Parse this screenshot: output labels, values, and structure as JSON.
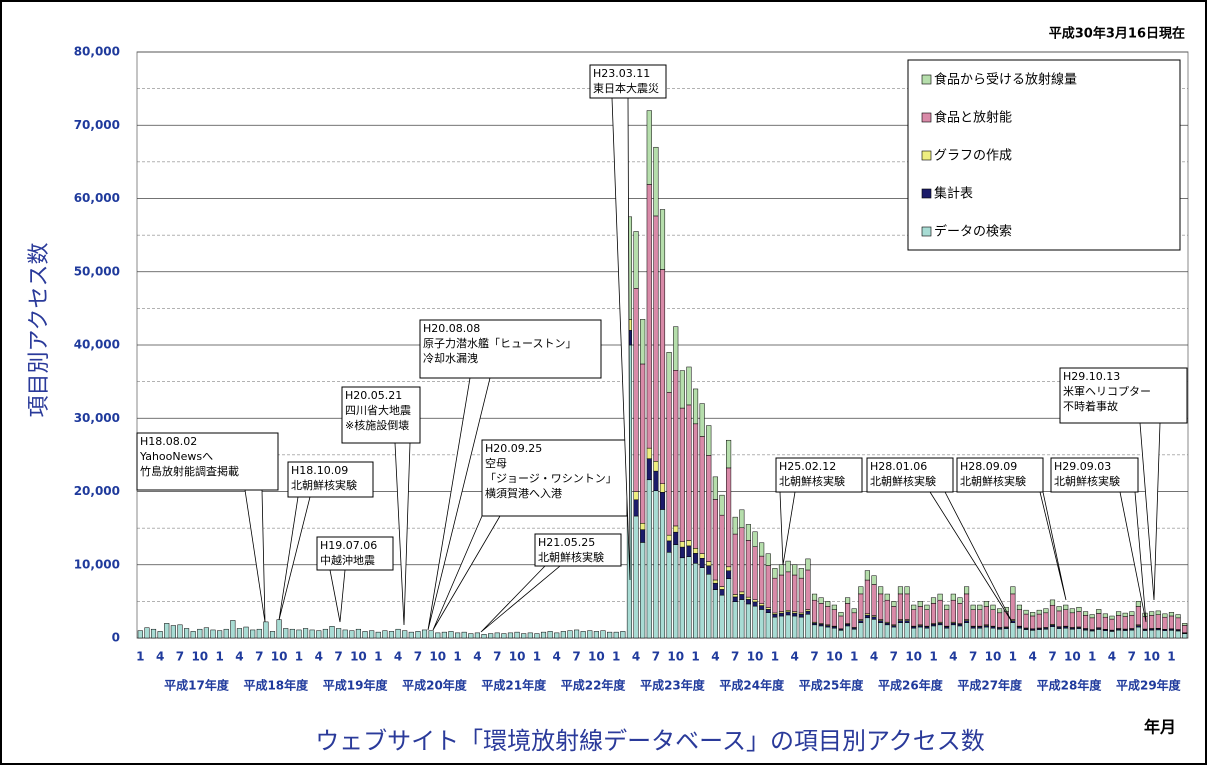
{
  "chart_data": {
    "type": "stacked_bar",
    "title": "ウェブサイト「環境放射線データベース」の項目別アクセス数",
    "subtitle": "平成30年3月16日現在",
    "y_label": "項目別アクセス数",
    "x_label": "年月",
    "ylim": [
      0,
      80000
    ],
    "yticks": [
      0,
      {
        "value": 10000,
        "label": "10,000"
      },
      {
        "value": 20000,
        "label": "20,000"
      },
      {
        "value": 30000,
        "label": "30,000"
      },
      {
        "value": 40000,
        "label": "40,000"
      },
      {
        "value": 50000,
        "label": "50,000"
      },
      {
        "value": 60000,
        "label": "60,000"
      },
      {
        "value": 70000,
        "label": "70,000"
      },
      {
        "value": 80000,
        "label": "80,000"
      }
    ],
    "minor_yticks": [
      5000,
      15000,
      25000,
      35000,
      45000,
      55000,
      65000,
      75000
    ],
    "grid": true,
    "legend": "upper right",
    "categories": [
      "1",
      null,
      null,
      "4",
      null,
      null,
      "7",
      null,
      null,
      "10",
      null,
      null,
      "1",
      null,
      null,
      "4",
      null,
      null,
      "7",
      null,
      null,
      "10",
      null,
      null,
      "1",
      null,
      null,
      "4",
      null,
      null,
      "7",
      null,
      null,
      "10",
      null,
      null,
      "1",
      null,
      null,
      "4",
      null,
      null,
      "7",
      null,
      null,
      "10",
      null,
      null,
      "1",
      null,
      null,
      "4",
      null,
      null,
      "7",
      null,
      null,
      "10",
      null,
      null,
      "1",
      null,
      null,
      "4",
      null,
      null,
      "7",
      null,
      null,
      "10",
      null,
      null,
      "1",
      null,
      null,
      "4",
      null,
      null,
      "7",
      null,
      null,
      "10",
      null,
      null,
      "1",
      null,
      null,
      "4",
      null,
      null,
      "7",
      null,
      null,
      "10",
      null,
      null,
      "1",
      null,
      null,
      "4",
      null,
      null,
      "7",
      null,
      null,
      "10",
      null,
      null,
      "1",
      null,
      null,
      "4",
      null,
      null,
      "7",
      null,
      null,
      "10",
      null,
      null,
      "1",
      null,
      null,
      "4",
      null,
      null,
      "7",
      null,
      null,
      "10",
      null,
      null,
      "1",
      null,
      null,
      "4",
      null,
      null,
      "7",
      null,
      null,
      "10",
      null,
      null,
      "1",
      null,
      null,
      "4",
      null,
      null,
      "7",
      null,
      null,
      "10",
      null,
      null,
      "1",
      null,
      null
    ],
    "fiscal_years": [
      "平成17年度",
      "平成18年度",
      "平成19年度",
      "平成20年度",
      "平成21年度",
      "平成22年度",
      "平成23年度",
      "平成24年度",
      "平成25年度",
      "平成26年度",
      "平成27年度",
      "平成28年度",
      "平成29年度"
    ],
    "series": [
      {
        "name": "データの検索",
        "color": "#a8dcd4",
        "values": [
          1000,
          1400,
          1200,
          900,
          2000,
          1700,
          1800,
          1300,
          900,
          1200,
          1400,
          1100,
          1000,
          1200,
          2400,
          1300,
          1500,
          1100,
          1200,
          2200,
          900,
          2500,
          1300,
          1200,
          1100,
          1300,
          1100,
          1000,
          1200,
          1600,
          1300,
          1100,
          1000,
          1200,
          900,
          1000,
          800,
          1000,
          900,
          1200,
          1000,
          800,
          900,
          1100,
          1000,
          700,
          800,
          900,
          700,
          800,
          600,
          700,
          500,
          600,
          700,
          600,
          700,
          800,
          600,
          700,
          600,
          800,
          900,
          700,
          900,
          1000,
          1100,
          900,
          1000,
          900,
          1000,
          800,
          800,
          900,
          40000,
          16650,
          13050,
          21600,
          20100,
          17550,
          11700,
          12750,
          10950,
          11100,
          10200,
          9600,
          8700,
          6600,
          5850,
          8100,
          4950,
          5250,
          4650,
          4350,
          3900,
          3450,
          2850,
          3000,
          3150,
          3000,
          2850,
          3240,
          1800,
          1650,
          1500,
          1350,
          1050,
          1650,
          1200,
          2100,
          2760,
          2550,
          2100,
          1800,
          1500,
          2100,
          2100,
          1350,
          1500,
          1350,
          1650,
          1800,
          1350,
          1800,
          1650,
          2100,
          1350,
          1350,
          1500,
          1350,
          1200,
          1260,
          2100,
          1350,
          1140,
          1050,
          1140,
          1200,
          1560,
          1290,
          1350,
          1200,
          1260,
          1080,
          960,
          1170,
          990,
          900,
          1080,
          1020,
          1080,
          1500,
          1020,
          1080,
          1110,
          990,
          1050,
          960,
          600
        ]
      },
      {
        "name": "集計表",
        "color": "#1c1c6a",
        "values": [
          0,
          0,
          0,
          0,
          0,
          0,
          0,
          0,
          0,
          0,
          0,
          0,
          0,
          0,
          0,
          0,
          0,
          0,
          0,
          0,
          0,
          0,
          0,
          0,
          0,
          0,
          0,
          0,
          0,
          0,
          0,
          0,
          0,
          0,
          0,
          0,
          0,
          0,
          0,
          0,
          0,
          0,
          0,
          0,
          0,
          0,
          0,
          0,
          0,
          0,
          0,
          0,
          0,
          0,
          0,
          0,
          0,
          0,
          0,
          0,
          0,
          0,
          0,
          0,
          0,
          0,
          0,
          0,
          0,
          0,
          0,
          0,
          0,
          0,
          2000,
          2220,
          1740,
          2880,
          2680,
          2340,
          1560,
          1700,
          1460,
          1480,
          1360,
          1280,
          1160,
          880,
          780,
          1080,
          660,
          700,
          620,
          580,
          520,
          460,
          380,
          400,
          420,
          400,
          380,
          432,
          240,
          220,
          200,
          180,
          140,
          220,
          160,
          280,
          368,
          340,
          280,
          240,
          200,
          280,
          280,
          180,
          200,
          180,
          220,
          240,
          180,
          240,
          220,
          280,
          180,
          180,
          200,
          180,
          160,
          168,
          280,
          180,
          152,
          140,
          152,
          160,
          208,
          172,
          180,
          160,
          168,
          144,
          128,
          156,
          132,
          120,
          144,
          136,
          144,
          200,
          136,
          144,
          148,
          132,
          140,
          128,
          80
        ]
      },
      {
        "name": "グラフの作成",
        "color": "#eeee80",
        "values": [
          0,
          0,
          0,
          0,
          0,
          0,
          0,
          0,
          0,
          0,
          0,
          0,
          0,
          0,
          0,
          0,
          0,
          0,
          0,
          0,
          0,
          0,
          0,
          0,
          0,
          0,
          0,
          0,
          0,
          0,
          0,
          0,
          0,
          0,
          0,
          0,
          0,
          0,
          0,
          0,
          0,
          0,
          0,
          0,
          0,
          0,
          0,
          0,
          0,
          0,
          0,
          0,
          0,
          0,
          0,
          0,
          0,
          0,
          0,
          0,
          0,
          0,
          0,
          0,
          0,
          0,
          0,
          0,
          0,
          0,
          0,
          0,
          0,
          0,
          1500,
          1110,
          870,
          1440,
          1340,
          1170,
          780,
          850,
          730,
          740,
          680,
          640,
          580,
          440,
          390,
          540,
          330,
          350,
          310,
          290,
          260,
          230,
          190,
          200,
          210,
          200,
          190,
          216,
          120,
          110,
          100,
          90,
          70,
          110,
          80,
          140,
          184,
          170,
          140,
          120,
          100,
          140,
          140,
          90,
          100,
          90,
          110,
          120,
          90,
          120,
          110,
          140,
          90,
          90,
          100,
          90,
          80,
          84,
          140,
          90,
          76,
          70,
          76,
          80,
          104,
          86,
          90,
          80,
          84,
          72,
          64,
          78,
          66,
          60,
          72,
          68,
          72,
          100,
          68,
          72,
          74,
          66,
          70,
          64,
          40
        ]
      },
      {
        "name": "食品と放射能",
        "color": "#d98aa8",
        "values": [
          0,
          0,
          0,
          0,
          0,
          0,
          0,
          0,
          0,
          0,
          0,
          0,
          0,
          0,
          0,
          0,
          0,
          0,
          0,
          0,
          0,
          0,
          0,
          0,
          0,
          0,
          0,
          0,
          0,
          0,
          0,
          0,
          0,
          0,
          0,
          0,
          0,
          0,
          0,
          0,
          0,
          0,
          0,
          0,
          0,
          0,
          0,
          0,
          0,
          0,
          0,
          0,
          0,
          0,
          0,
          0,
          0,
          0,
          0,
          0,
          0,
          0,
          0,
          0,
          0,
          0,
          0,
          0,
          0,
          0,
          0,
          0,
          0,
          0,
          0,
          27750,
          21750,
          36000,
          33500,
          29250,
          19500,
          21250,
          18250,
          18500,
          17000,
          16000,
          14500,
          11000,
          9750,
          13500,
          8250,
          8750,
          7750,
          7250,
          6500,
          5750,
          4750,
          5000,
          5250,
          5000,
          4750,
          5400,
          3000,
          2750,
          2500,
          2250,
          1750,
          2750,
          2000,
          3500,
          4600,
          4250,
          3500,
          3000,
          2500,
          3500,
          3500,
          2250,
          2500,
          2250,
          2750,
          3000,
          2250,
          3000,
          2750,
          3500,
          2250,
          2250,
          2500,
          2250,
          2000,
          2100,
          3500,
          2250,
          1900,
          1750,
          1900,
          2000,
          2600,
          2150,
          2250,
          2000,
          2100,
          1800,
          1600,
          1950,
          1650,
          1500,
          1800,
          1700,
          1800,
          2500,
          1700,
          1800,
          1850,
          1650,
          1750,
          1600,
          1000
        ]
      },
      {
        "name": "食品から受ける放射線量",
        "color": "#b6deac",
        "values": [
          0,
          0,
          0,
          0,
          0,
          0,
          0,
          0,
          0,
          0,
          0,
          0,
          0,
          0,
          0,
          0,
          0,
          0,
          0,
          0,
          0,
          0,
          0,
          0,
          0,
          0,
          0,
          0,
          0,
          0,
          0,
          0,
          0,
          0,
          0,
          0,
          0,
          0,
          0,
          0,
          0,
          0,
          0,
          0,
          0,
          0,
          0,
          0,
          0,
          0,
          0,
          0,
          0,
          0,
          0,
          0,
          0,
          0,
          0,
          0,
          0,
          0,
          0,
          0,
          0,
          0,
          0,
          0,
          0,
          0,
          0,
          0,
          0,
          0,
          14000,
          7770,
          6090,
          10080,
          9380,
          8190,
          5460,
          5950,
          5110,
          5180,
          4760,
          4480,
          4060,
          3080,
          2730,
          3780,
          2310,
          2450,
          2170,
          2030,
          1820,
          1610,
          1330,
          1400,
          1470,
          1400,
          1330,
          1512,
          840,
          770,
          700,
          630,
          490,
          770,
          560,
          980,
          1288,
          1190,
          980,
          840,
          700,
          980,
          980,
          630,
          700,
          630,
          770,
          840,
          630,
          840,
          770,
          980,
          630,
          630,
          700,
          630,
          560,
          588,
          980,
          630,
          532,
          490,
          532,
          560,
          728,
          602,
          630,
          560,
          588,
          504,
          448,
          546,
          462,
          420,
          504,
          476,
          504,
          700,
          476,
          504,
          518,
          462,
          490,
          448,
          280
        ]
      }
    ],
    "annotations": [
      {
        "date": "H18.08.02",
        "lines": [
          "YahooNewsへ",
          "竹島放射能調査掲載"
        ]
      },
      {
        "date": "H18.10.09",
        "lines": [
          "北朝鮮核実験"
        ]
      },
      {
        "date": "H19.07.06",
        "lines": [
          "中越沖地震"
        ]
      },
      {
        "date": "H20.05.21",
        "lines": [
          "四川省大地震",
          "※核施設倒壊"
        ]
      },
      {
        "date": "H20.08.08",
        "lines": [
          "原子力潜水艦「ヒューストン」",
          "冷却水漏洩"
        ]
      },
      {
        "date": "H20.09.25",
        "lines": [
          "空母",
          "「ジョージ・ワシントン」",
          "横須賀港へ入港"
        ]
      },
      {
        "date": "H21.05.25",
        "lines": [
          "北朝鮮核実験"
        ]
      },
      {
        "date": "H23.03.11",
        "lines": [
          "東日本大震災"
        ]
      },
      {
        "date": "H25.02.12",
        "lines": [
          "北朝鮮核実験"
        ]
      },
      {
        "date": "H28.01.06",
        "lines": [
          "北朝鮮核実験"
        ]
      },
      {
        "date": "H28.09.09",
        "lines": [
          "北朝鮮核実験"
        ]
      },
      {
        "date": "H29.09.03",
        "lines": [
          "北朝鮮核実験"
        ]
      },
      {
        "date": "H29.10.13",
        "lines": [
          "米軍ヘリコプター",
          "不時着事故"
        ]
      }
    ]
  }
}
